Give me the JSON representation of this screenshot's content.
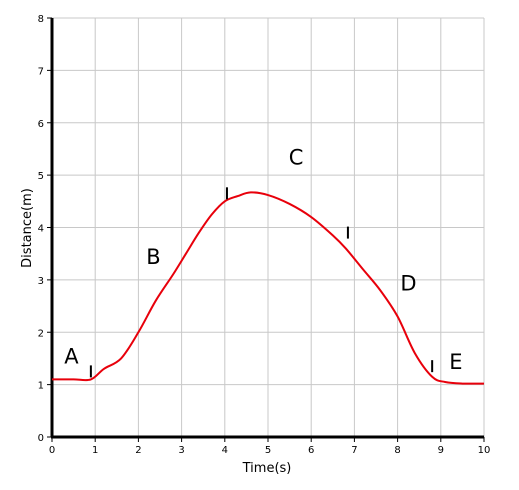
{
  "chart_data": {
    "type": "line",
    "xlabel": "Time(s)",
    "ylabel": "Distance(m)",
    "xlim": [
      0,
      10
    ],
    "ylim": [
      0,
      8
    ],
    "x_ticks": [
      "0",
      "1",
      "2",
      "3",
      "4",
      "5",
      "6",
      "7",
      "8",
      "9",
      "10"
    ],
    "y_ticks": [
      "0",
      "1",
      "2",
      "3",
      "4",
      "5",
      "6",
      "7",
      "8"
    ],
    "grid": true,
    "line_color": "#e8000b",
    "series": [
      {
        "x": [
          0,
          0.5,
          0.9,
          1.2,
          1.6,
          2.0,
          2.4,
          2.8,
          3.1,
          3.4,
          3.7,
          4.0,
          4.3,
          4.6,
          5.0,
          5.5,
          6.0,
          6.5,
          6.8,
          7.2,
          7.6,
          8.0,
          8.4,
          8.8,
          9.1,
          9.5,
          10.0
        ],
        "y": [
          1.1,
          1.1,
          1.1,
          1.3,
          1.5,
          2.0,
          2.6,
          3.1,
          3.5,
          3.9,
          4.25,
          4.5,
          4.6,
          4.67,
          4.62,
          4.45,
          4.2,
          3.85,
          3.6,
          3.2,
          2.8,
          2.3,
          1.6,
          1.15,
          1.05,
          1.02,
          1.02
        ]
      }
    ],
    "segment_markers": [
      {
        "x": 0.9,
        "y": 1.1
      },
      {
        "x": 4.05,
        "y": 4.5
      },
      {
        "x": 6.85,
        "y": 3.75
      },
      {
        "x": 8.8,
        "y": 1.2
      }
    ],
    "annotations": [
      {
        "text": "A",
        "x": 0.45,
        "y": 1.4
      },
      {
        "text": "B",
        "x": 2.35,
        "y": 3.3
      },
      {
        "text": "C",
        "x": 5.65,
        "y": 5.2
      },
      {
        "text": "D",
        "x": 8.25,
        "y": 2.8
      },
      {
        "text": "E",
        "x": 9.35,
        "y": 1.3
      }
    ]
  }
}
